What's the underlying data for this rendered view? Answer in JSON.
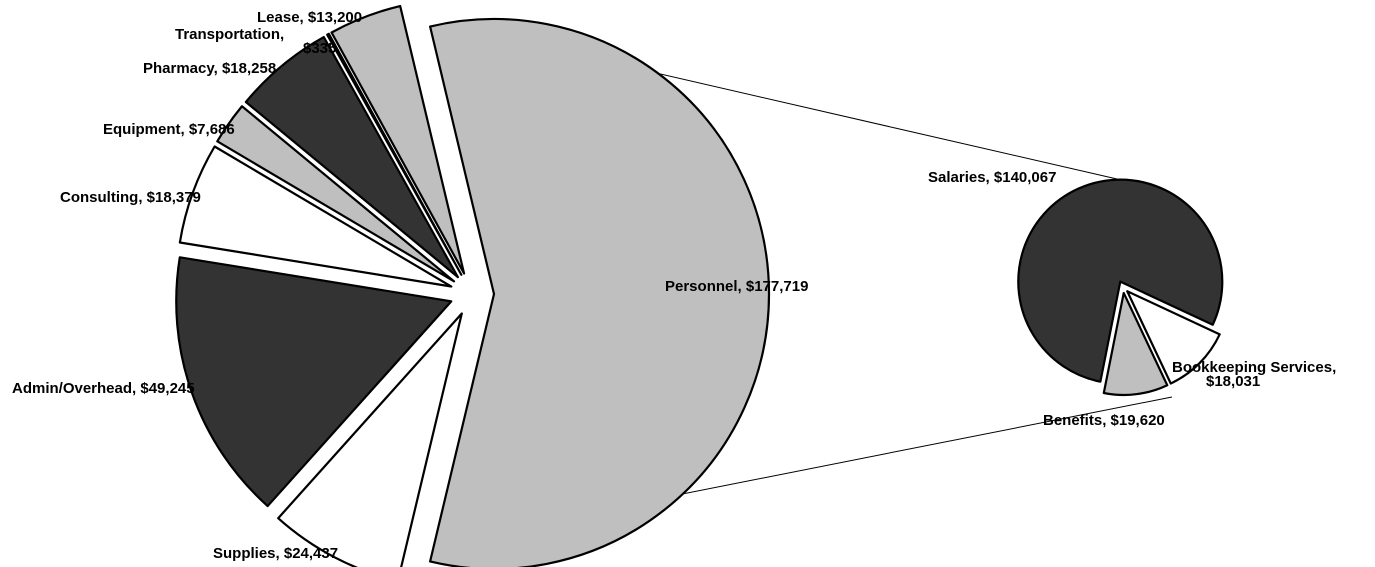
{
  "chart_data": {
    "type": "pie",
    "subtype": "pie-of-pie",
    "colors": {
      "dark": "#333333",
      "light": "#bfbfbf",
      "white": "#ffffff"
    },
    "main_pie": {
      "slices": [
        {
          "category": "Personnel",
          "value": "$177,719",
          "amount": 177719,
          "color": "light"
        },
        {
          "category": "Supplies",
          "value": "$24,437",
          "amount": 24437,
          "color": "white"
        },
        {
          "category": "Admin/Overhead",
          "value": "$49,245",
          "amount": 49245,
          "color": "dark"
        },
        {
          "category": "Consulting",
          "value": "$18,379",
          "amount": 18379,
          "color": "white"
        },
        {
          "category": "Equipment",
          "value": "$7,686",
          "amount": 7686,
          "color": "light"
        },
        {
          "category": "Pharmacy",
          "value": "$18,258",
          "amount": 18258,
          "color": "dark"
        },
        {
          "category": "Transportation",
          "value": "$335",
          "amount": 335,
          "color": "white"
        },
        {
          "category": "Lease",
          "value": "$13,200",
          "amount": 13200,
          "color": "light"
        }
      ]
    },
    "secondary_pie": {
      "source_category": "Personnel",
      "slices": [
        {
          "category": "Salaries",
          "value": "$140,067",
          "amount": 140067,
          "color": "dark"
        },
        {
          "category": "Benefits",
          "value": "$19,620",
          "amount": 19620,
          "color": "white"
        },
        {
          "category": "Bookkeeping Services",
          "value": "$18,031",
          "amount": 18031,
          "color": "light"
        }
      ]
    }
  }
}
